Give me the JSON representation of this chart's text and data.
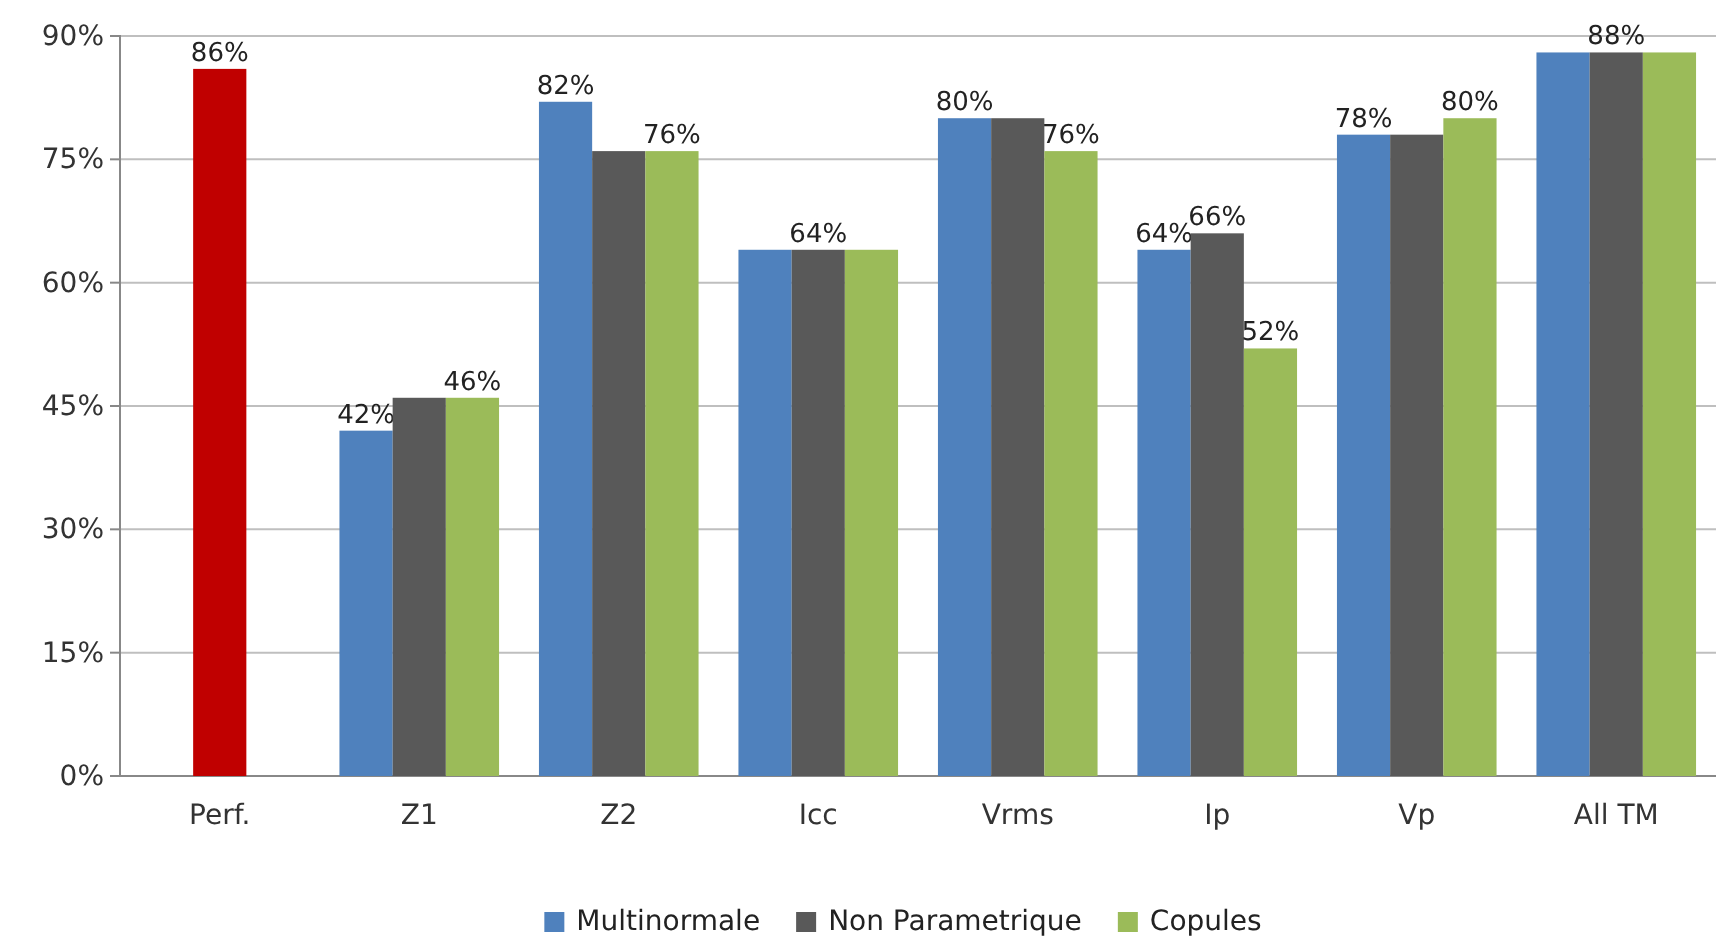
{
  "chart_data": {
    "type": "bar",
    "categories": [
      "Perf.",
      "Z1",
      "Z2",
      "Icc",
      "Vrms",
      "Ip",
      "Vp",
      "All TM"
    ],
    "series": [
      {
        "name": "Multinormale",
        "color": "#4f81bd",
        "values": [
          null,
          42,
          82,
          64,
          80,
          64,
          78,
          88
        ],
        "value_labels": [
          null,
          "42%",
          "82%",
          null,
          "80%",
          "64%",
          "78%",
          null
        ]
      },
      {
        "name": "Non Parametrique",
        "color": "#595959",
        "colors": [
          "#c00000",
          "#595959",
          "#595959",
          "#595959",
          "#595959",
          "#595959",
          "#595959",
          "#595959"
        ],
        "values": [
          86,
          46,
          76,
          64,
          80,
          66,
          78,
          88
        ],
        "value_labels": [
          "86%",
          null,
          null,
          "64%",
          null,
          "66%",
          null,
          "88%"
        ]
      },
      {
        "name": "Copules",
        "color": "#9bbb59",
        "values": [
          null,
          46,
          76,
          64,
          76,
          52,
          80,
          88
        ],
        "value_labels": [
          null,
          "46%",
          "76%",
          null,
          "76%",
          "52%",
          "80%",
          null
        ]
      }
    ],
    "ylim": [
      0,
      90
    ],
    "yticks": [
      {
        "value": 0,
        "label": "0%"
      },
      {
        "value": 15,
        "label": "15%"
      },
      {
        "value": 30,
        "label": "30%"
      },
      {
        "value": 45,
        "label": "45%"
      },
      {
        "value": 60,
        "label": "60%"
      },
      {
        "value": 75,
        "label": "75%"
      },
      {
        "value": 90,
        "label": "90%"
      }
    ],
    "grid": "y",
    "legend": "bottom"
  }
}
